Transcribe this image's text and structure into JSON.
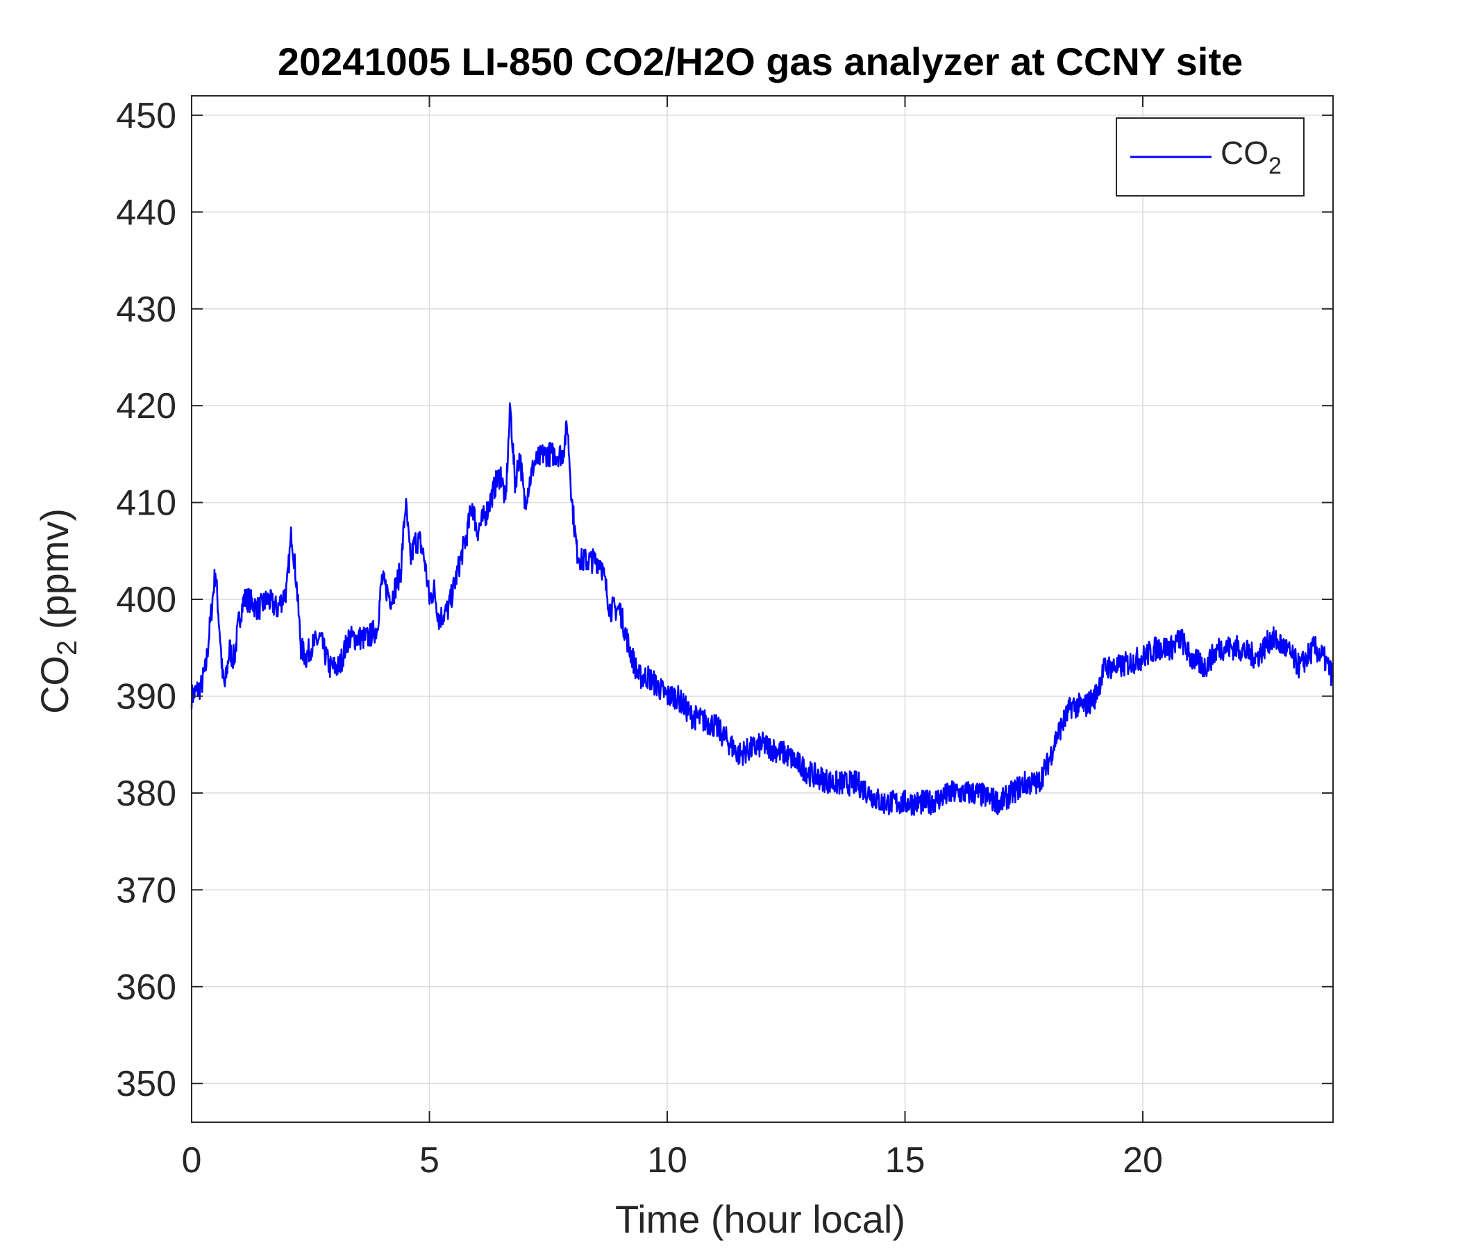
{
  "chart_data": {
    "type": "line",
    "title": "20241005 LI-850 CO2/H2O gas analyzer at CCNY site",
    "xlabel": "Time (hour local)",
    "ylabel": {
      "main": "CO",
      "sub": "2",
      "rest": " (ppmv)"
    },
    "xlim": [
      0,
      24
    ],
    "ylim": [
      346,
      452
    ],
    "xticks": [
      0,
      5,
      10,
      15,
      20
    ],
    "yticks": [
      350,
      360,
      370,
      380,
      390,
      400,
      410,
      420,
      430,
      440,
      450
    ],
    "grid": true,
    "legend": {
      "placement": "top-right",
      "label_main": "CO",
      "label_sub": "2"
    },
    "colors": {
      "series": "#0000ff",
      "grid": "#dcdcdc",
      "axis": "#262626"
    },
    "series": [
      {
        "name": "CO2",
        "x": [
          0,
          0.1,
          0.2,
          0.3,
          0.4,
          0.5,
          0.6,
          0.65,
          0.7,
          0.8,
          0.85,
          0.9,
          1.0,
          1.1,
          1.2,
          1.4,
          1.6,
          1.8,
          2.0,
          2.1,
          2.2,
          2.3,
          2.4,
          2.5,
          2.7,
          2.9,
          3.1,
          3.3,
          3.5,
          3.7,
          3.9,
          4.0,
          4.2,
          4.4,
          4.5,
          4.6,
          4.7,
          4.8,
          4.9,
          5.0,
          5.1,
          5.2,
          5.4,
          5.6,
          5.8,
          5.9,
          6.0,
          6.2,
          6.4,
          6.5,
          6.6,
          6.7,
          6.8,
          6.9,
          7.0,
          7.2,
          7.4,
          7.6,
          7.8,
          7.9,
          8.0,
          8.1,
          8.2,
          8.4,
          8.6,
          8.8,
          9.0,
          9.2,
          9.4,
          9.6,
          9.8,
          10.0,
          10.2,
          10.5,
          11.0,
          11.5,
          12.0,
          12.5,
          13.0,
          13.5,
          14.0,
          14.5,
          15.0,
          15.5,
          16.0,
          16.5,
          17.0,
          17.5,
          17.8,
          18.0,
          18.2,
          18.5,
          18.8,
          19.0,
          19.2,
          19.5,
          20.0,
          20.3,
          20.6,
          20.8,
          21.0,
          21.3,
          21.6,
          22.0,
          22.4,
          22.7,
          23.0,
          23.3,
          23.6,
          23.8,
          24.0
        ],
        "y": [
          390,
          390.5,
          391,
          393,
          398,
          403,
          396,
          392,
          391,
          395,
          394,
          394,
          398,
          400,
          400,
          399,
          400,
          399,
          401,
          407,
          402,
          395,
          394,
          395,
          396,
          393,
          393,
          396,
          396,
          396,
          397,
          402,
          400,
          403,
          410,
          404,
          406,
          406,
          404,
          400,
          401,
          398,
          399,
          403,
          407,
          410,
          407,
          409,
          412,
          413,
          410,
          420,
          412,
          415,
          410,
          414,
          415,
          415,
          415,
          418,
          410,
          405,
          404,
          404,
          404,
          399,
          399,
          395,
          392,
          392,
          391,
          390,
          390,
          388,
          387,
          384,
          385,
          384,
          382,
          381,
          381,
          379,
          379,
          379,
          380,
          380,
          379,
          381,
          381,
          383,
          386,
          389,
          389,
          390,
          393,
          393,
          394,
          395,
          395,
          396,
          394,
          393,
          395,
          395,
          394,
          396,
          395,
          393,
          395,
          394,
          392
        ]
      }
    ]
  }
}
